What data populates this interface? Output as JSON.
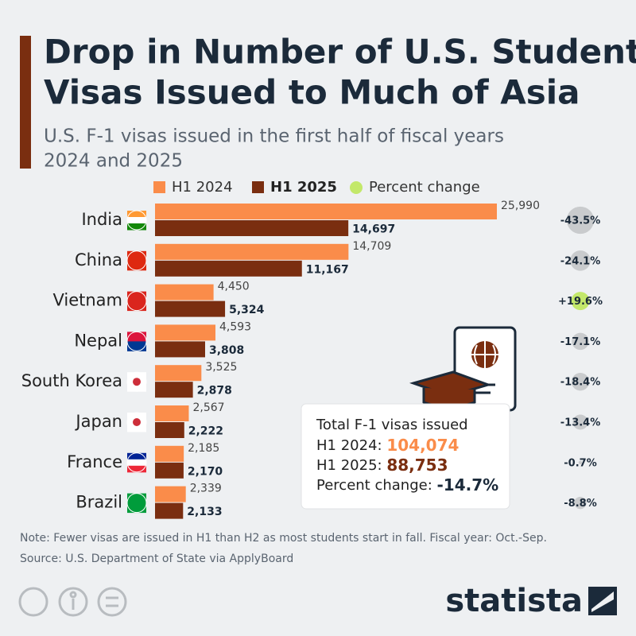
{
  "chart_data": {
    "type": "bar",
    "title": "Drop in Number of U.S. Student Visas Issued to Much of Asia",
    "title_lines": [
      "Drop in Number of U.S. Student",
      "Visas Issued to Much of Asia"
    ],
    "subtitle_lines": [
      "U.S. F-1 visas issued in the first half of fiscal years",
      "2024 and 2025"
    ],
    "categories": [
      "India",
      "China",
      "Vietnam",
      "Nepal",
      "South Korea",
      "Japan",
      "France",
      "Brazil"
    ],
    "series": [
      {
        "name": "H1 2024",
        "color": "#fa8c4a",
        "values": [
          25990,
          14709,
          4450,
          4593,
          3525,
          2567,
          2185,
          2339
        ],
        "value_labels": [
          "25,990",
          "14,709",
          "4,450",
          "4,593",
          "3,525",
          "2,567",
          "2,185",
          "2,339"
        ]
      },
      {
        "name": "H1 2025",
        "color": "#7a2e10",
        "values": [
          14697,
          11167,
          5324,
          3808,
          2878,
          2222,
          2170,
          2133
        ],
        "value_labels": [
          "14,697",
          "11,167",
          "5,324",
          "3,808",
          "2,878",
          "2,222",
          "2,170",
          "2,133"
        ]
      }
    ],
    "percent_change": {
      "name": "Percent change",
      "color": "#c9cbcd",
      "positive_color": "#c3e86a",
      "values": [
        -43.5,
        -24.1,
        19.6,
        -17.1,
        -18.4,
        -13.4,
        -0.7,
        -8.8
      ],
      "value_labels": [
        "-43.5%",
        "-24.1%",
        "+19.6%",
        "-17.1%",
        "-18.4%",
        "-13.4%",
        "-0.7%",
        "-8.8%"
      ]
    },
    "summary": {
      "title": "Total F-1 visas issued",
      "rows": [
        [
          "H1 2024:",
          "104,074"
        ],
        [
          "H1 2025:",
          "88,753"
        ],
        [
          "Percent change:",
          "-14.7%"
        ]
      ]
    },
    "note": "Note: Fewer visas are issued in H1 than H2 as most students start in fall. Fiscal year: Oct.-Sep.",
    "source": "Source: U.S. Department of State via ApplyBoard",
    "brand": "statista"
  }
}
